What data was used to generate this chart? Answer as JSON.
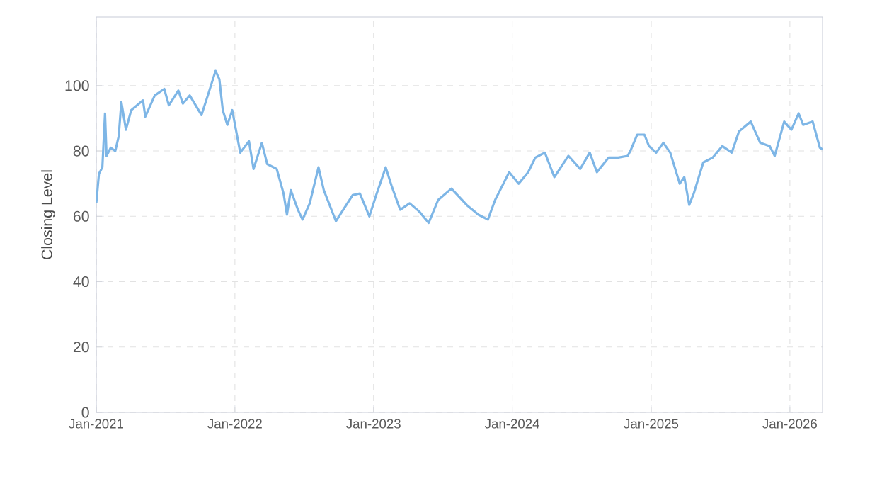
{
  "chart_data": {
    "type": "line",
    "ylabel": "Closing Level",
    "color": "#7eb6e6",
    "grid": true,
    "marker": "none",
    "line_style": "solid",
    "xlim": [
      "2021-01-01",
      "2026-03-28"
    ],
    "ylim": [
      0,
      121
    ],
    "xticks": [
      {
        "value": "2021-01-01",
        "label": "Jan-2021"
      },
      {
        "value": "2022-01-01",
        "label": "Jan-2022"
      },
      {
        "value": "2023-01-01",
        "label": "Jan-2023"
      },
      {
        "value": "2024-01-01",
        "label": "Jan-2024"
      },
      {
        "value": "2025-01-01",
        "label": "Jan-2025"
      },
      {
        "value": "2026-01-01",
        "label": "Jan-2026"
      }
    ],
    "yticks": [
      0,
      20,
      40,
      60,
      80,
      100
    ],
    "x": [
      "2021-01-01",
      "2021-01-08",
      "2021-01-17",
      "2021-01-24",
      "2021-01-28",
      "2021-02-08",
      "2021-02-20",
      "2021-03-01",
      "2021-03-08",
      "2021-03-20",
      "2021-04-03",
      "2021-05-04",
      "2021-05-10",
      "2021-06-04",
      "2021-06-29",
      "2021-07-11",
      "2021-08-05",
      "2021-08-17",
      "2021-09-04",
      "2021-10-05",
      "2021-10-23",
      "2021-11-11",
      "2021-11-21",
      "2021-11-30",
      "2021-12-12",
      "2021-12-25",
      "2022-01-15",
      "2022-02-07",
      "2022-02-19",
      "2022-03-13",
      "2022-03-27",
      "2022-04-21",
      "2022-05-09",
      "2022-05-18",
      "2022-05-28",
      "2022-06-16",
      "2022-06-28",
      "2022-07-17",
      "2022-08-09",
      "2022-08-23",
      "2022-09-24",
      "2022-10-13",
      "2022-11-07",
      "2022-11-26",
      "2022-12-21",
      "2023-01-08",
      "2023-02-02",
      "2023-02-17",
      "2023-03-12",
      "2023-04-06",
      "2023-05-01",
      "2023-05-26",
      "2023-06-20",
      "2023-07-25",
      "2023-09-03",
      "2023-10-04",
      "2023-10-29",
      "2023-11-17",
      "2023-12-24",
      "2024-01-18",
      "2024-02-12",
      "2024-03-02",
      "2024-03-27",
      "2024-04-21",
      "2024-05-28",
      "2024-06-28",
      "2024-07-23",
      "2024-08-11",
      "2024-09-11",
      "2024-10-06",
      "2024-10-31",
      "2024-11-07",
      "2024-11-25",
      "2024-12-14",
      "2024-12-26",
      "2025-01-14",
      "2025-02-02",
      "2025-02-20",
      "2025-03-17",
      "2025-03-29",
      "2025-04-11",
      "2025-04-23",
      "2025-05-18",
      "2025-06-12",
      "2025-07-07",
      "2025-08-01",
      "2025-08-20",
      "2025-09-20",
      "2025-10-15",
      "2025-11-09",
      "2025-11-22",
      "2025-12-17",
      "2026-01-05",
      "2026-01-24",
      "2026-02-05",
      "2026-03-02",
      "2026-03-21",
      "2026-03-28"
    ],
    "values": [
      64,
      73,
      75,
      91.5,
      78.5,
      81,
      80,
      84.5,
      95,
      86.5,
      92.5,
      95.5,
      90.5,
      97,
      99,
      94,
      98.5,
      94.5,
      97,
      91,
      97.5,
      104.5,
      102,
      92.5,
      88,
      92.5,
      79.5,
      83,
      74.5,
      82.5,
      76,
      74.5,
      67,
      60.5,
      68,
      62,
      59,
      64,
      75,
      68,
      58.5,
      62,
      66.5,
      67,
      60,
      66.5,
      75,
      69.5,
      62,
      64,
      61.5,
      58,
      65,
      68.5,
      63.5,
      60.5,
      59,
      65,
      73.5,
      70,
      73.5,
      78,
      79.5,
      72,
      78.5,
      74.5,
      79.5,
      73.5,
      78,
      78,
      78.5,
      80,
      85,
      85,
      81.5,
      79.5,
      82.5,
      79.5,
      70,
      72,
      63.5,
      67,
      76.5,
      78,
      81.5,
      79.5,
      86,
      89,
      82.5,
      81.5,
      78.5,
      89,
      86.5,
      91.5,
      88,
      89,
      81,
      80.5
    ]
  }
}
